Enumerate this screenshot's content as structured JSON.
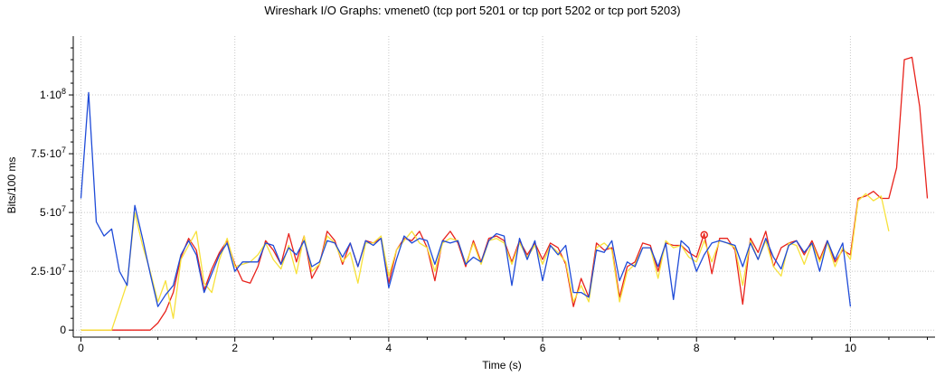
{
  "chart_data": {
    "type": "line",
    "title": "Wireshark I/O Graphs: vmenet0 (tcp port 5201 or tcp port 5202 or tcp port 5203)",
    "xlabel": "Time (s)",
    "ylabel": "Bits/100 ms",
    "xlim": [
      -0.1,
      11.1
    ],
    "ylim": [
      -3000000,
      125000000
    ],
    "x_ticks": [
      0,
      2,
      4,
      6,
      8,
      10
    ],
    "x_tick_labels": [
      "0",
      "2",
      "4",
      "6",
      "8",
      "10"
    ],
    "y_ticks": [
      0,
      25000000,
      50000000,
      75000000,
      100000000
    ],
    "y_tick_labels": [
      {
        "mant": "0",
        "exp": ""
      },
      {
        "mant": "2.5·10",
        "exp": "7"
      },
      {
        "mant": "5·10",
        "exp": "7"
      },
      {
        "mant": "7.5·10",
        "exp": "7"
      },
      {
        "mant": "1·10",
        "exp": "8"
      }
    ],
    "grid": true,
    "series": [
      {
        "color": "#e8221b",
        "x": [
          0,
          0.1,
          0.2,
          0.3,
          0.4,
          0.5,
          0.6,
          0.7,
          0.8,
          0.9,
          1.0,
          1.1,
          1.2,
          1.3,
          1.4,
          1.5,
          1.6,
          1.7,
          1.8,
          1.9,
          2.0,
          2.1,
          2.2,
          2.3,
          2.4,
          2.5,
          2.6,
          2.7,
          2.8,
          2.9,
          3.0,
          3.1,
          3.2,
          3.3,
          3.4,
          3.5,
          3.6,
          3.7,
          3.8,
          3.9,
          4.0,
          4.1,
          4.2,
          4.3,
          4.4,
          4.5,
          4.6,
          4.7,
          4.8,
          4.9,
          5.0,
          5.1,
          5.2,
          5.3,
          5.4,
          5.5,
          5.6,
          5.7,
          5.8,
          5.9,
          6.0,
          6.1,
          6.2,
          6.3,
          6.4,
          6.5,
          6.6,
          6.7,
          6.8,
          6.9,
          7.0,
          7.1,
          7.2,
          7.3,
          7.4,
          7.5,
          7.6,
          7.7,
          7.8,
          7.9,
          8.0,
          8.1,
          8.2,
          8.3,
          8.4,
          8.5,
          8.6,
          8.7,
          8.8,
          8.9,
          9.0,
          9.1,
          9.2,
          9.3,
          9.4,
          9.5,
          9.6,
          9.7,
          9.8,
          9.9,
          10.0,
          10.1,
          10.2,
          10.3,
          10.4,
          10.5,
          10.6,
          10.7,
          10.8,
          10.9,
          11.0
        ],
        "y": [
          0,
          0,
          0,
          0,
          0,
          0,
          0,
          0,
          0,
          0,
          3000000,
          8000000,
          16000000,
          31000000,
          39000000,
          34000000,
          17000000,
          26000000,
          33000000,
          38000000,
          28000000,
          21000000,
          20000000,
          27000000,
          38000000,
          34000000,
          28000000,
          41000000,
          29000000,
          40000000,
          22000000,
          28000000,
          42000000,
          38000000,
          28000000,
          37000000,
          27000000,
          38000000,
          37000000,
          39000000,
          20000000,
          34000000,
          39000000,
          38000000,
          42000000,
          35000000,
          21000000,
          38000000,
          42000000,
          37000000,
          27000000,
          38000000,
          29000000,
          39000000,
          40000000,
          38000000,
          29000000,
          38000000,
          32000000,
          37000000,
          30000000,
          37000000,
          35000000,
          28000000,
          10000000,
          22000000,
          14000000,
          37000000,
          34000000,
          35000000,
          14000000,
          27000000,
          29000000,
          37000000,
          36000000,
          25000000,
          37000000,
          36000000,
          36000000,
          33000000,
          31000000,
          41000000,
          24000000,
          39000000,
          39000000,
          34000000,
          11000000,
          39000000,
          33000000,
          42000000,
          27000000,
          35000000,
          37000000,
          38000000,
          32000000,
          38000000,
          30000000,
          38000000,
          29000000,
          34000000,
          32000000,
          56000000,
          57000000,
          59000000,
          56000000,
          56000000,
          69000000,
          115000000,
          116000000,
          95000000,
          56000000
        ]
      },
      {
        "color": "#f7e13a",
        "x": [
          0,
          0.1,
          0.2,
          0.3,
          0.4,
          0.5,
          0.6,
          0.7,
          0.8,
          0.9,
          1.0,
          1.1,
          1.2,
          1.3,
          1.4,
          1.5,
          1.6,
          1.7,
          1.8,
          1.9,
          2.0,
          2.1,
          2.2,
          2.3,
          2.4,
          2.5,
          2.6,
          2.7,
          2.8,
          2.9,
          3.0,
          3.1,
          3.2,
          3.3,
          3.4,
          3.5,
          3.6,
          3.7,
          3.8,
          3.9,
          4.0,
          4.1,
          4.2,
          4.3,
          4.4,
          4.5,
          4.6,
          4.7,
          4.8,
          4.9,
          5.0,
          5.1,
          5.2,
          5.3,
          5.4,
          5.5,
          5.6,
          5.7,
          5.8,
          5.9,
          6.0,
          6.1,
          6.2,
          6.3,
          6.4,
          6.5,
          6.6,
          6.7,
          6.8,
          6.9,
          7.0,
          7.1,
          7.2,
          7.3,
          7.4,
          7.5,
          7.6,
          7.7,
          7.8,
          7.9,
          8.0,
          8.1,
          8.2,
          8.3,
          8.4,
          8.5,
          8.6,
          8.7,
          8.8,
          8.9,
          9.0,
          9.1,
          9.2,
          9.3,
          9.4,
          9.5,
          9.6,
          9.7,
          9.8,
          9.9,
          10.0,
          10.1,
          10.2,
          10.3,
          10.4,
          10.5
        ],
        "y": [
          0,
          0,
          0,
          0,
          0,
          10000000,
          20000000,
          50000000,
          36000000,
          25000000,
          12000000,
          21000000,
          5000000,
          30000000,
          36000000,
          42000000,
          20000000,
          16000000,
          30000000,
          39000000,
          27000000,
          28000000,
          29000000,
          32000000,
          37000000,
          30000000,
          26000000,
          36000000,
          24000000,
          40000000,
          25000000,
          28000000,
          40000000,
          37000000,
          29000000,
          33000000,
          20000000,
          37000000,
          37000000,
          40000000,
          23000000,
          34000000,
          38000000,
          42000000,
          37000000,
          35000000,
          25000000,
          37000000,
          39000000,
          38000000,
          28000000,
          37000000,
          28000000,
          38000000,
          39000000,
          37000000,
          28000000,
          37000000,
          31000000,
          36000000,
          28000000,
          36000000,
          33000000,
          29000000,
          12000000,
          19000000,
          12000000,
          35000000,
          37000000,
          34000000,
          12000000,
          25000000,
          28000000,
          35000000,
          35000000,
          22000000,
          38000000,
          35000000,
          36000000,
          31000000,
          29000000,
          38000000,
          29000000,
          38000000,
          37000000,
          35000000,
          19000000,
          38000000,
          30000000,
          38000000,
          27000000,
          23000000,
          37000000,
          36000000,
          28000000,
          37000000,
          29000000,
          37000000,
          27000000,
          35000000,
          30000000,
          55000000,
          58000000,
          55000000,
          57000000,
          42000000
        ]
      },
      {
        "color": "#1f4bd8",
        "x": [
          0,
          0.1,
          0.2,
          0.3,
          0.4,
          0.5,
          0.6,
          0.7,
          0.8,
          0.9,
          1.0,
          1.1,
          1.2,
          1.3,
          1.4,
          1.5,
          1.6,
          1.7,
          1.8,
          1.9,
          2.0,
          2.1,
          2.2,
          2.3,
          2.4,
          2.5,
          2.6,
          2.7,
          2.8,
          2.9,
          3.0,
          3.1,
          3.2,
          3.3,
          3.4,
          3.5,
          3.6,
          3.7,
          3.8,
          3.9,
          4.0,
          4.1,
          4.2,
          4.3,
          4.4,
          4.5,
          4.6,
          4.7,
          4.8,
          4.9,
          5.0,
          5.1,
          5.2,
          5.3,
          5.4,
          5.5,
          5.6,
          5.7,
          5.8,
          5.9,
          6.0,
          6.1,
          6.2,
          6.3,
          6.4,
          6.5,
          6.6,
          6.7,
          6.8,
          6.9,
          7.0,
          7.1,
          7.2,
          7.3,
          7.4,
          7.5,
          7.6,
          7.7,
          7.8,
          7.9,
          8.0,
          8.1,
          8.2,
          8.3,
          8.4,
          8.5,
          8.6,
          8.7,
          8.8,
          8.9,
          9.0,
          9.1,
          9.2,
          9.3,
          9.4,
          9.5,
          9.6,
          9.7,
          9.8,
          9.9,
          10.0
        ],
        "y": [
          56000000,
          101000000,
          46000000,
          40000000,
          43000000,
          25000000,
          19000000,
          53000000,
          39000000,
          24000000,
          10000000,
          15000000,
          19000000,
          32000000,
          38000000,
          32000000,
          16000000,
          24000000,
          32000000,
          37000000,
          25000000,
          29000000,
          29000000,
          29000000,
          37000000,
          36000000,
          28000000,
          35000000,
          32000000,
          38000000,
          27000000,
          29000000,
          38000000,
          37000000,
          31000000,
          37000000,
          27000000,
          38000000,
          36000000,
          39000000,
          18000000,
          30000000,
          40000000,
          37000000,
          39000000,
          38000000,
          28000000,
          38000000,
          37000000,
          38000000,
          28000000,
          31000000,
          29000000,
          38000000,
          41000000,
          40000000,
          19000000,
          39000000,
          30000000,
          38000000,
          21000000,
          36000000,
          32000000,
          36000000,
          16000000,
          16000000,
          14000000,
          34000000,
          33000000,
          38000000,
          21000000,
          29000000,
          27000000,
          35000000,
          35000000,
          27000000,
          37000000,
          13000000,
          38000000,
          35000000,
          25000000,
          32000000,
          37000000,
          38000000,
          37000000,
          36000000,
          27000000,
          37000000,
          30000000,
          39000000,
          31000000,
          26000000,
          36000000,
          38000000,
          33000000,
          37000000,
          25000000,
          38000000,
          30000000,
          37000000,
          10000000
        ]
      }
    ],
    "marker": {
      "x": 8.1,
      "y": 40500000,
      "color": "#e8221b"
    }
  }
}
